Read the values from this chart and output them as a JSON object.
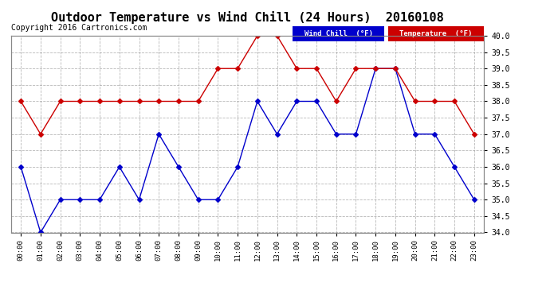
{
  "title": "Outdoor Temperature vs Wind Chill (24 Hours)  20160108",
  "copyright": "Copyright 2016 Cartronics.com",
  "background_color": "#ffffff",
  "plot_bg_color": "#ffffff",
  "grid_color": "#999999",
  "hours": [
    "00:00",
    "01:00",
    "02:00",
    "03:00",
    "04:00",
    "05:00",
    "06:00",
    "07:00",
    "08:00",
    "09:00",
    "10:00",
    "11:00",
    "12:00",
    "13:00",
    "14:00",
    "15:00",
    "16:00",
    "17:00",
    "18:00",
    "19:00",
    "20:00",
    "21:00",
    "22:00",
    "23:00"
  ],
  "wind_chill": [
    36.0,
    34.0,
    35.0,
    35.0,
    35.0,
    36.0,
    35.0,
    37.0,
    36.0,
    35.0,
    35.0,
    36.0,
    38.0,
    37.0,
    38.0,
    38.0,
    37.0,
    37.0,
    39.0,
    39.0,
    37.0,
    37.0,
    36.0,
    35.0
  ],
  "temperature": [
    38.0,
    37.0,
    38.0,
    38.0,
    38.0,
    38.0,
    38.0,
    38.0,
    38.0,
    38.0,
    39.0,
    39.0,
    40.0,
    40.0,
    39.0,
    39.0,
    38.0,
    39.0,
    39.0,
    39.0,
    38.0,
    38.0,
    38.0,
    37.0
  ],
  "wind_chill_color": "#0000cc",
  "temperature_color": "#cc0000",
  "ylim_min": 34.0,
  "ylim_max": 40.0,
  "title_fontsize": 11,
  "copyright_fontsize": 7,
  "legend_wind_label": "Wind Chill  (°F)",
  "legend_temp_label": "Temperature  (°F)"
}
